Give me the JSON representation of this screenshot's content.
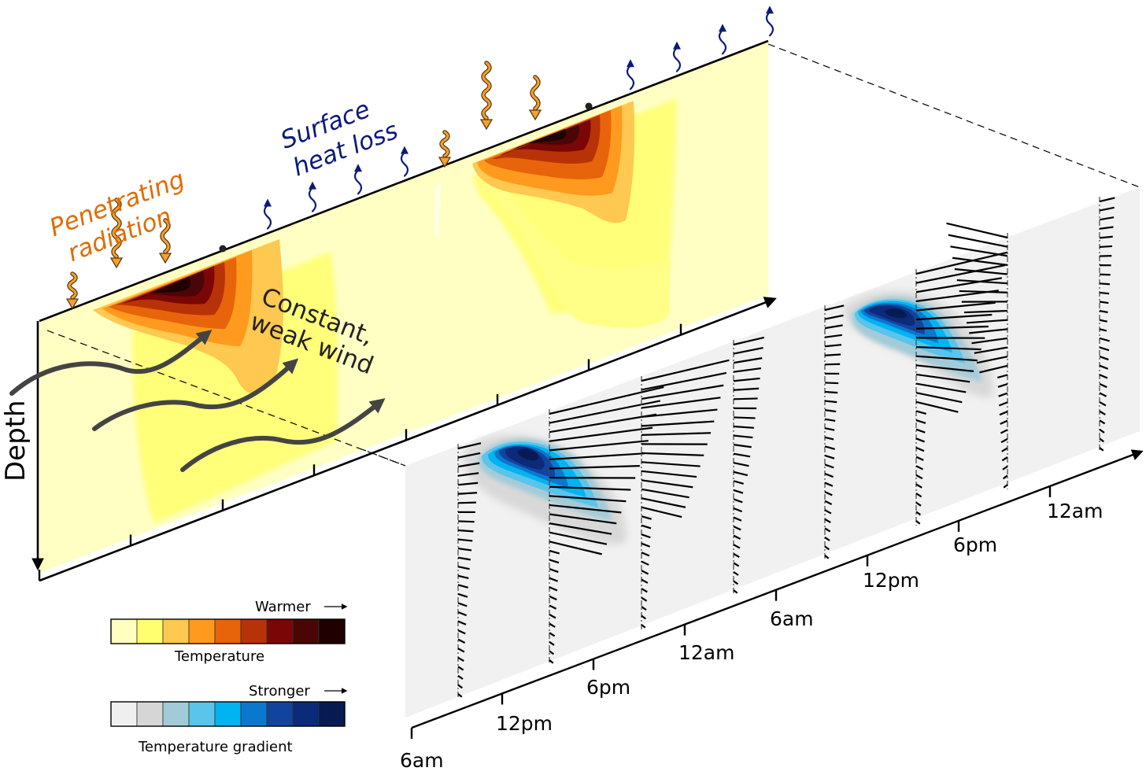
{
  "annotations": {
    "penetrating_line1": "Penetrating",
    "penetrating_line2": "radiation",
    "surface_line1": "Surface",
    "surface_line2": "heat loss",
    "wind_line1": "Constant,",
    "wind_line2": "weak wind",
    "depth_axis": "Depth"
  },
  "time_axis": {
    "labels": [
      "6am",
      "12pm",
      "6pm",
      "12am",
      "6am",
      "12pm",
      "6pm",
      "12am"
    ]
  },
  "legends": {
    "temperature": {
      "arrow_label": "Warmer",
      "title": "Temperature",
      "colors": [
        "#ffffc0",
        "#ffff70",
        "#ffc850",
        "#ff9a1e",
        "#e8640a",
        "#b83208",
        "#7a0606",
        "#4a0606",
        "#200000"
      ]
    },
    "gradient": {
      "arrow_label": "Stronger",
      "title": "Temperature gradient",
      "colors": [
        "#efefef",
        "#d6d6d6",
        "#a2cbd8",
        "#5ac4ea",
        "#00b4f2",
        "#0a78cc",
        "#12449e",
        "#0c2a7a",
        "#071a52"
      ]
    }
  },
  "colors": {
    "radiation": "#f5a030",
    "heat_loss": "#0a1a7a",
    "wind": "#444444",
    "penetrating_text": "#e06c00",
    "surface_text": "#0a1a7a"
  }
}
